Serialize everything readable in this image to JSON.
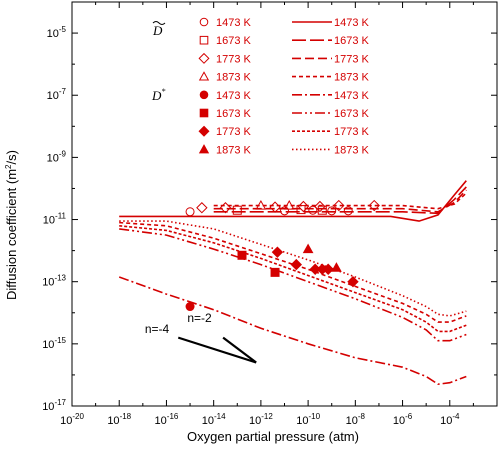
{
  "chart_data": {
    "type": "scatter",
    "title": "",
    "xlabel": "Oxygen partial pressure (atm)",
    "ylabel_main": "Diffusion coefficient (m",
    "ylabel_sup": "2",
    "ylabel_end": "/s)",
    "x_scale": "log",
    "y_scale": "log",
    "xlim": [
      1e-20,
      0.01
    ],
    "ylim": [
      1e-17,
      0.0001
    ],
    "x_ticks": [
      {
        "base": "10",
        "exp": "-20"
      },
      {
        "base": "10",
        "exp": "-18"
      },
      {
        "base": "10",
        "exp": "-16"
      },
      {
        "base": "10",
        "exp": "-14"
      },
      {
        "base": "10",
        "exp": "-12"
      },
      {
        "base": "10",
        "exp": "-10"
      },
      {
        "base": "10",
        "exp": "-8"
      },
      {
        "base": "10",
        "exp": "-6"
      },
      {
        "base": "10",
        "exp": "-4"
      }
    ],
    "y_ticks": [
      {
        "base": "10",
        "exp": "-5"
      },
      {
        "base": "10",
        "exp": "-7"
      },
      {
        "base": "10",
        "exp": "-9"
      },
      {
        "base": "10",
        "exp": "-11"
      },
      {
        "base": "10",
        "exp": "-13"
      },
      {
        "base": "10",
        "exp": "-15"
      },
      {
        "base": "10",
        "exp": "-17"
      }
    ],
    "legend": {
      "placement": "top-left inside",
      "group_chem": "D",
      "group_tracer": "D",
      "group_tracer_sup": "*",
      "entries": [
        {
          "marker": "circle-open",
          "marker_label": "1473 K",
          "line": "solid",
          "line_label": "1473 K"
        },
        {
          "marker": "square-open",
          "marker_label": "1673 K",
          "line": "longdash",
          "line_label": "1673 K"
        },
        {
          "marker": "diamond-open",
          "marker_label": "1773 K",
          "line": "dash",
          "line_label": "1773 K"
        },
        {
          "marker": "triangle-open",
          "marker_label": "1873 K",
          "line": "shortdash",
          "line_label": "1873 K"
        },
        {
          "marker": "circle-filled",
          "marker_label": "1473 K",
          "line": "dashdot",
          "line_label": "1473 K"
        },
        {
          "marker": "square-filled",
          "marker_label": "1673 K",
          "line": "dashdotdot",
          "line_label": "1673 K"
        },
        {
          "marker": "diamond-filled",
          "marker_label": "1773 K",
          "line": "dense-dash",
          "line_label": "1773 K"
        },
        {
          "marker": "triangle-filled",
          "marker_label": "1873 K",
          "line": "dot",
          "line_label": "1873 K"
        }
      ]
    },
    "series": [
      {
        "group": "chem",
        "kind": "points",
        "marker": "circle-open",
        "points": [
          [
            -15,
            -10.75
          ],
          [
            -11,
            -10.72
          ],
          [
            -9.8,
            -10.7
          ],
          [
            -9,
            -10.72
          ],
          [
            -8.3,
            -10.72
          ]
        ]
      },
      {
        "group": "chem",
        "kind": "points",
        "marker": "square-open",
        "points": [
          [
            -13,
            -10.7
          ],
          [
            -10.3,
            -10.68
          ],
          [
            -9.4,
            -10.7
          ]
        ]
      },
      {
        "group": "chem",
        "kind": "points",
        "marker": "diamond-open",
        "points": [
          [
            -14.5,
            -10.62
          ],
          [
            -13.5,
            -10.62
          ],
          [
            -11.4,
            -10.6
          ],
          [
            -10.2,
            -10.58
          ],
          [
            -9.5,
            -10.58
          ],
          [
            -8.7,
            -10.55
          ],
          [
            -7.2,
            -10.55
          ]
        ]
      },
      {
        "group": "chem",
        "kind": "points",
        "marker": "triangle-open",
        "points": [
          [
            -12,
            -10.55
          ],
          [
            -10.8,
            -10.55
          ]
        ]
      },
      {
        "group": "tracer",
        "kind": "points",
        "marker": "circle-filled",
        "points": [
          [
            -15,
            -13.8
          ]
        ]
      },
      {
        "group": "tracer",
        "kind": "points",
        "marker": "square-filled",
        "points": [
          [
            -12.8,
            -12.15
          ],
          [
            -11.4,
            -12.7
          ]
        ]
      },
      {
        "group": "tracer",
        "kind": "points",
        "marker": "diamond-filled",
        "points": [
          [
            -11.3,
            -12.05
          ],
          [
            -10.5,
            -12.45
          ],
          [
            -9.7,
            -12.6
          ],
          [
            -9.4,
            -12.6
          ],
          [
            -9.15,
            -12.6
          ],
          [
            -8.1,
            -13.0
          ]
        ]
      },
      {
        "group": "tracer",
        "kind": "points",
        "marker": "triangle-filled",
        "points": [
          [
            -10,
            -11.95
          ],
          [
            -8.8,
            -12.55
          ]
        ]
      },
      {
        "group": "chem",
        "kind": "line",
        "line": "solid",
        "points": [
          [
            -18,
            -10.9
          ],
          [
            -6.5,
            -10.9
          ],
          [
            -5.3,
            -11.05
          ],
          [
            -4.5,
            -10.85
          ],
          [
            -3.8,
            -10.2
          ],
          [
            -3.3,
            -9.75
          ]
        ]
      },
      {
        "group": "chem",
        "kind": "line",
        "line": "longdash",
        "points": [
          [
            -14,
            -10.75
          ],
          [
            -6,
            -10.75
          ],
          [
            -4.5,
            -10.8
          ],
          [
            -3.8,
            -10.35
          ],
          [
            -3.3,
            -9.95
          ]
        ]
      },
      {
        "group": "chem",
        "kind": "line",
        "line": "dash",
        "points": [
          [
            -14,
            -10.65
          ],
          [
            -6,
            -10.65
          ],
          [
            -4.5,
            -10.75
          ],
          [
            -3.8,
            -10.45
          ],
          [
            -3.3,
            -10.05
          ]
        ]
      },
      {
        "group": "chem",
        "kind": "line",
        "line": "shortdash",
        "points": [
          [
            -14,
            -10.55
          ],
          [
            -6,
            -10.55
          ],
          [
            -4.5,
            -10.65
          ],
          [
            -3.8,
            -10.5
          ],
          [
            -3.3,
            -10.15
          ]
        ]
      },
      {
        "group": "tracer",
        "kind": "line",
        "line": "dashdot",
        "points": [
          [
            -18,
            -12.85
          ],
          [
            -16,
            -13.4
          ],
          [
            -14,
            -13.9
          ],
          [
            -12,
            -14.5
          ],
          [
            -10,
            -15.0
          ],
          [
            -8,
            -15.45
          ],
          [
            -6,
            -15.75
          ],
          [
            -5,
            -16.05
          ],
          [
            -4.5,
            -16.3
          ],
          [
            -4,
            -16.25
          ],
          [
            -3.3,
            -16.05
          ]
        ]
      },
      {
        "group": "tracer",
        "kind": "line",
        "line": "dashdotdot",
        "points": [
          [
            -18,
            -11.3
          ],
          [
            -16,
            -11.5
          ],
          [
            -14,
            -11.95
          ],
          [
            -12,
            -12.45
          ],
          [
            -10,
            -13.0
          ],
          [
            -8,
            -13.55
          ],
          [
            -6,
            -14.15
          ],
          [
            -5,
            -14.55
          ],
          [
            -4.5,
            -14.9
          ],
          [
            -4,
            -14.9
          ],
          [
            -3.3,
            -14.7
          ]
        ]
      },
      {
        "group": "tracer",
        "kind": "line",
        "line": "dense-dash",
        "points": [
          [
            -18,
            -11.2
          ],
          [
            -16,
            -11.35
          ],
          [
            -14,
            -11.75
          ],
          [
            -12,
            -12.25
          ],
          [
            -10,
            -12.8
          ],
          [
            -8,
            -13.35
          ],
          [
            -6,
            -13.9
          ],
          [
            -5,
            -14.3
          ],
          [
            -4.5,
            -14.6
          ],
          [
            -4,
            -14.6
          ],
          [
            -3.3,
            -14.4
          ]
        ]
      },
      {
        "group": "tracer",
        "kind": "line",
        "line": "shortdash",
        "points": [
          [
            -18,
            -11.1
          ],
          [
            -16,
            -11.2
          ],
          [
            -14,
            -11.6
          ],
          [
            -12,
            -12.1
          ],
          [
            -10,
            -12.6
          ],
          [
            -8,
            -13.15
          ],
          [
            -6,
            -13.7
          ],
          [
            -5,
            -14.05
          ],
          [
            -4.5,
            -14.3
          ],
          [
            -4,
            -14.3
          ],
          [
            -3.3,
            -14.1
          ]
        ]
      },
      {
        "group": "tracer",
        "kind": "line",
        "line": "dot",
        "points": [
          [
            -18,
            -11.05
          ],
          [
            -16,
            -11.05
          ],
          [
            -14,
            -11.3
          ],
          [
            -12,
            -11.8
          ],
          [
            -10,
            -12.3
          ],
          [
            -8,
            -12.85
          ],
          [
            -6,
            -13.45
          ],
          [
            -5,
            -13.8
          ],
          [
            -4.5,
            -14.05
          ],
          [
            -4,
            -14.1
          ],
          [
            -3.3,
            -13.95
          ]
        ]
      }
    ],
    "slope_annotations": [
      {
        "label": "n=-4",
        "slope_points": [
          [
            -15.5,
            -14.8
          ],
          [
            -12.2,
            -15.6
          ]
        ]
      },
      {
        "label": "n=-2",
        "slope_points": [
          [
            -13.6,
            -14.8
          ],
          [
            -12.2,
            -15.6
          ]
        ]
      }
    ]
  }
}
